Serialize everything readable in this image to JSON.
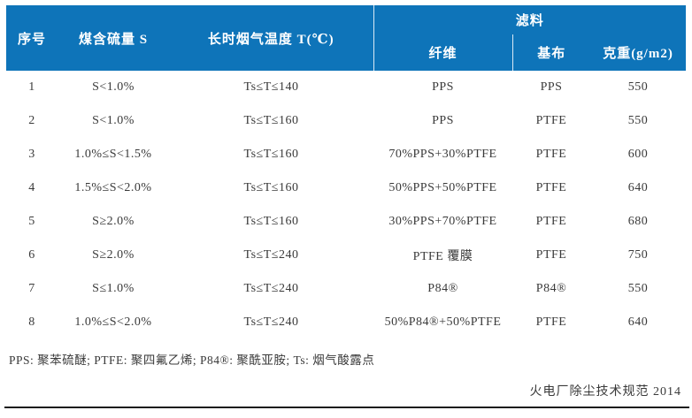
{
  "colors": {
    "header_bg": "#0e74b9",
    "header_text": "#ffffff",
    "body_text": "#3a3a3a",
    "bottom_rule": "#1c1c1c"
  },
  "chart_data": {
    "type": "table",
    "group_header": {
      "label": "滤料",
      "spans_columns": [
        "纤维",
        "基布",
        "克重(g/m2)"
      ]
    },
    "columns": [
      "序号",
      "煤含硫量 S",
      "长时烟气温度 T(℃)",
      "纤维",
      "基布",
      "克重(g/m2)"
    ],
    "rows": [
      [
        "1",
        "S<1.0%",
        "Ts≤T≤140",
        "PPS",
        "PPS",
        "550"
      ],
      [
        "2",
        "S<1.0%",
        "Ts≤T≤160",
        "PPS",
        "PTFE",
        "550"
      ],
      [
        "3",
        "1.0%≤S<1.5%",
        "Ts≤T≤160",
        "70%PPS+30%PTFE",
        "PTFE",
        "600"
      ],
      [
        "4",
        "1.5%≤S<2.0%",
        "Ts≤T≤160",
        "50%PPS+50%PTFE",
        "PTFE",
        "640"
      ],
      [
        "5",
        "S≥2.0%",
        "Ts≤T≤160",
        "30%PPS+70%PTFE",
        "PTFE",
        "680"
      ],
      [
        "6",
        "S≥2.0%",
        "Ts≤T≤240",
        "PTFE 覆膜",
        "PTFE",
        "750"
      ],
      [
        "7",
        "S≤1.0%",
        "Ts≤T≤240",
        "P84®",
        "P84®",
        "550"
      ],
      [
        "8",
        "1.0%≤S<2.0%",
        "Ts≤T≤240",
        "50%P84®+50%PTFE",
        "PTFE",
        "640"
      ]
    ]
  },
  "footnote": "PPS: 聚苯硫醚; PTFE: 聚四氟乙烯; P84®: 聚酰亚胺; Ts: 烟气酸露点",
  "attribution": "火电厂除尘技术规范 2014"
}
